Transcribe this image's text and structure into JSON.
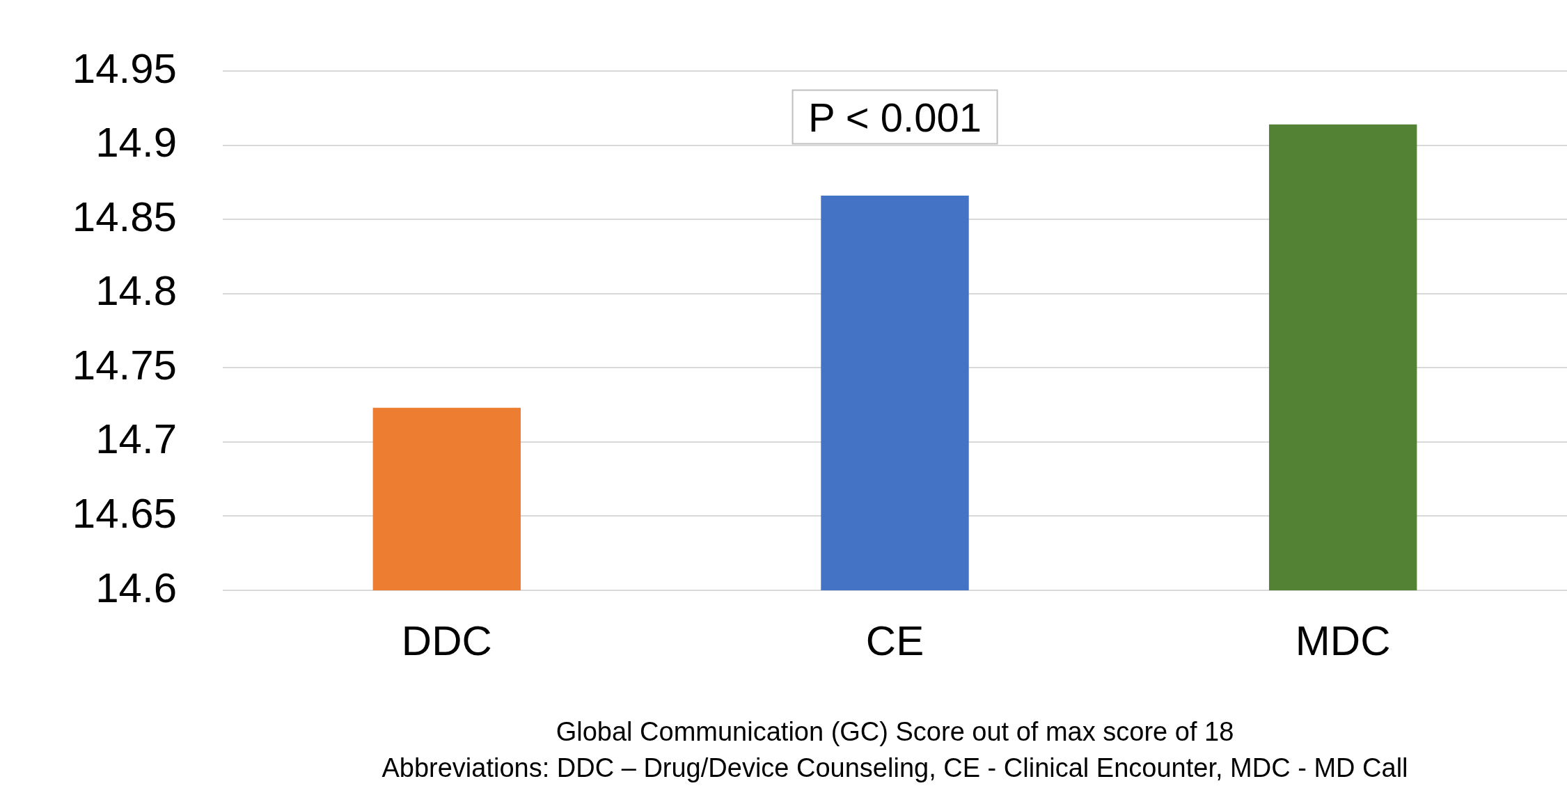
{
  "chart_data": {
    "type": "bar",
    "categories": [
      "DDC",
      "CE",
      "MDC"
    ],
    "values": [
      14.723,
      14.866,
      14.914
    ],
    "colors": [
      "#ed7d31",
      "#4472c4",
      "#548235"
    ],
    "ylim": [
      14.6,
      14.95
    ],
    "yticks": [
      14.6,
      14.65,
      14.7,
      14.75,
      14.8,
      14.85,
      14.9,
      14.95
    ],
    "grid": "y",
    "legend": false,
    "annotations": [
      "P < 0.001",
      "Global Communication (GC) Score out of max score of 18",
      "Abbreviations: DDC – Drug/Device Counseling, CE - Clinical Encounter, MDC - MD Call"
    ]
  }
}
